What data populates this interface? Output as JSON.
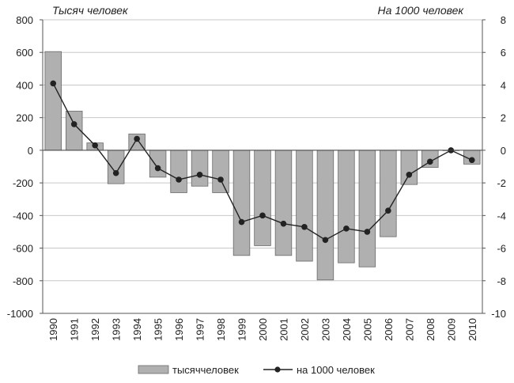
{
  "chart_data": {
    "type": "bar",
    "title": "",
    "xlabel": "",
    "ylabel": "Тысяч человек",
    "y2label": "На 1000 человек",
    "categories": [
      "1990",
      "1991",
      "1992",
      "1993",
      "1994",
      "1995",
      "1996",
      "1997",
      "1998",
      "1999",
      "2000",
      "2001",
      "2002",
      "2003",
      "2004",
      "2005",
      "2006",
      "2007",
      "2008",
      "2009",
      "2010"
    ],
    "ylim": [
      -1000,
      800
    ],
    "y2lim": [
      -10,
      8
    ],
    "yticks": [
      "800",
      "600",
      "400",
      "200",
      "0",
      "-200",
      "-400",
      "-600",
      "-800",
      "-1000"
    ],
    "y2ticks": [
      "8",
      "6",
      "4",
      "2",
      "0",
      "-2",
      "-4",
      "-6",
      "-8",
      "-10"
    ],
    "grid": true,
    "legend_position": "bottom",
    "series": [
      {
        "name": "тысяччеловек",
        "type": "bar",
        "axis": "left",
        "color": "#b0b0b0",
        "values": [
          605,
          240,
          45,
          -205,
          100,
          -165,
          -260,
          -220,
          -260,
          -645,
          -585,
          -645,
          -680,
          -795,
          -690,
          -715,
          -530,
          -210,
          -105,
          0,
          -85
        ]
      },
      {
        "name": "на 1000 человек",
        "type": "line",
        "axis": "right",
        "color": "#222222",
        "values": [
          4.1,
          1.6,
          0.3,
          -1.4,
          0.7,
          -1.1,
          -1.8,
          -1.5,
          -1.8,
          -4.4,
          -4.0,
          -4.5,
          -4.7,
          -5.5,
          -4.8,
          -5.0,
          -3.7,
          -1.5,
          -0.7,
          0.0,
          -0.6
        ]
      }
    ]
  }
}
